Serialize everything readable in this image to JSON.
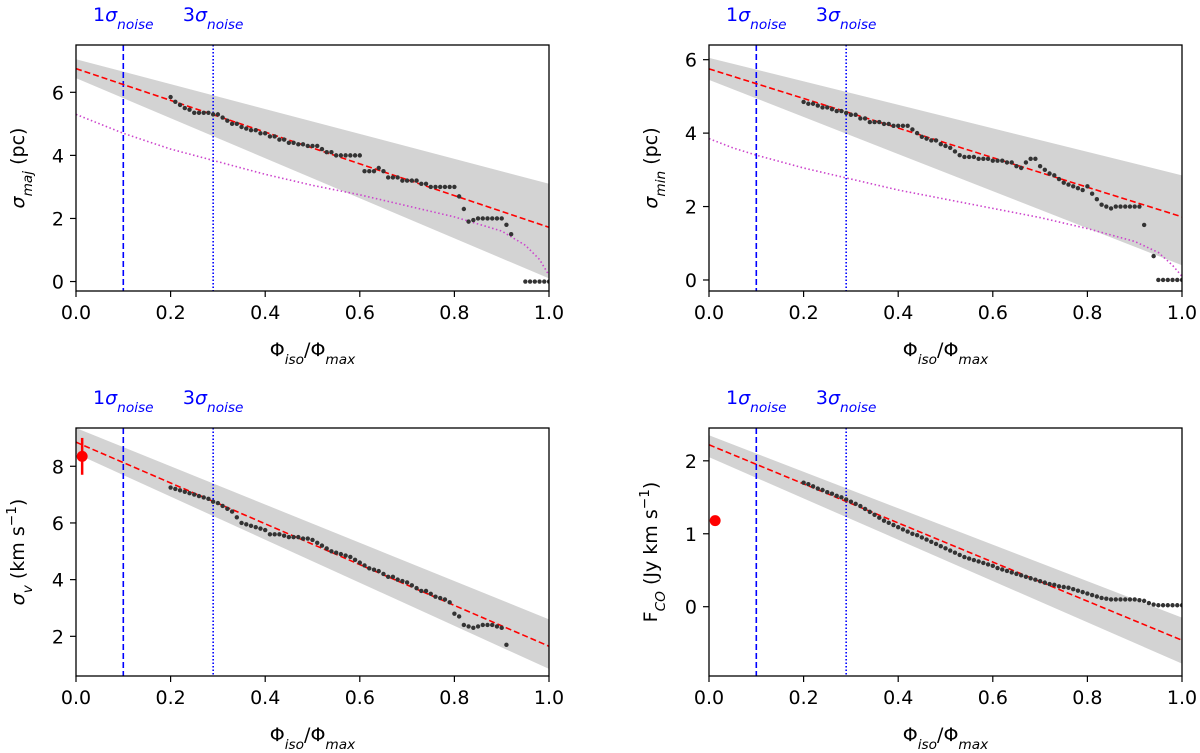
{
  "chart_data": [
    {
      "id": "maj",
      "type": "scatter",
      "xlabel": "Φiso/Φmax",
      "ylabel": "σmaj (pc)",
      "xlim": [
        0.0,
        1.0
      ],
      "ylim": [
        -0.3,
        7.5
      ],
      "xticks": [
        0.0,
        0.2,
        0.4,
        0.6,
        0.8,
        1.0
      ],
      "yticks": [
        0,
        2,
        4,
        6
      ],
      "xtick_labels": [
        "0.0",
        "0.2",
        "0.4",
        "0.6",
        "0.8",
        "1.0"
      ],
      "ytick_labels": [
        "0",
        "2",
        "4",
        "6"
      ],
      "vlines": [
        {
          "x": 0.1,
          "label": "1σnoise",
          "style": "dashed",
          "color": "#0000ff"
        },
        {
          "x": 0.29,
          "label": "3σnoise",
          "style": "dotted",
          "color": "#0000ff"
        }
      ],
      "fit": {
        "x": [
          0.0,
          1.0
        ],
        "y": [
          6.75,
          1.72
        ],
        "color": "#ff0000",
        "style": "dashed"
      },
      "band": {
        "x": [
          0.0,
          1.0
        ],
        "upper": [
          7.05,
          3.1
        ],
        "lower": [
          6.45,
          0.1
        ],
        "color": "#d3d3d3"
      },
      "curve": {
        "x": [
          0.0,
          0.05,
          0.1,
          0.2,
          0.3,
          0.4,
          0.5,
          0.6,
          0.7,
          0.8,
          0.9,
          0.95,
          0.98,
          1.0
        ],
        "y": [
          5.3,
          5.0,
          4.7,
          4.2,
          3.8,
          3.4,
          3.05,
          2.75,
          2.4,
          2.05,
          1.6,
          1.15,
          0.7,
          0.2
        ],
        "color": "#cc44cc",
        "style": "dotted"
      },
      "points": {
        "x": [
          0.2,
          0.21,
          0.22,
          0.23,
          0.24,
          0.25,
          0.26,
          0.27,
          0.28,
          0.29,
          0.3,
          0.31,
          0.32,
          0.33,
          0.34,
          0.35,
          0.36,
          0.37,
          0.38,
          0.39,
          0.4,
          0.41,
          0.42,
          0.43,
          0.44,
          0.45,
          0.46,
          0.47,
          0.48,
          0.49,
          0.5,
          0.51,
          0.52,
          0.53,
          0.54,
          0.55,
          0.56,
          0.57,
          0.58,
          0.59,
          0.6,
          0.61,
          0.62,
          0.63,
          0.64,
          0.65,
          0.66,
          0.67,
          0.68,
          0.69,
          0.7,
          0.71,
          0.72,
          0.73,
          0.74,
          0.75,
          0.76,
          0.77,
          0.78,
          0.79,
          0.8,
          0.81,
          0.82,
          0.83,
          0.84,
          0.85,
          0.86,
          0.87,
          0.88,
          0.89,
          0.9,
          0.91,
          0.92,
          0.95,
          0.96,
          0.97,
          0.98,
          0.99,
          1.0
        ],
        "y": [
          5.85,
          5.7,
          5.6,
          5.5,
          5.45,
          5.35,
          5.35,
          5.35,
          5.35,
          5.3,
          5.3,
          5.2,
          5.1,
          5.0,
          5.0,
          4.9,
          4.85,
          4.8,
          4.8,
          4.7,
          4.7,
          4.6,
          4.6,
          4.5,
          4.5,
          4.4,
          4.4,
          4.35,
          4.35,
          4.3,
          4.3,
          4.3,
          4.2,
          4.1,
          4.1,
          4.0,
          4.0,
          4.0,
          4.0,
          4.0,
          4.0,
          3.5,
          3.5,
          3.5,
          3.6,
          3.5,
          3.3,
          3.3,
          3.3,
          3.2,
          3.2,
          3.2,
          3.2,
          3.1,
          3.1,
          3.0,
          3.0,
          3.0,
          3.0,
          3.0,
          3.0,
          2.7,
          2.3,
          1.9,
          1.95,
          2.0,
          2.0,
          2.0,
          2.0,
          2.0,
          2.0,
          1.8,
          1.5,
          0.0,
          0.0,
          0.0,
          0.0,
          0.0,
          0.0
        ],
        "color": "#333333"
      },
      "extra_point": null
    },
    {
      "id": "min",
      "type": "scatter",
      "xlabel": "Φiso/Φmax",
      "ylabel": "σmin (pc)",
      "xlim": [
        0.0,
        1.0
      ],
      "ylim": [
        -0.3,
        6.4
      ],
      "xticks": [
        0.0,
        0.2,
        0.4,
        0.6,
        0.8,
        1.0
      ],
      "yticks": [
        0,
        2,
        4,
        6
      ],
      "xtick_labels": [
        "0.0",
        "0.2",
        "0.4",
        "0.6",
        "0.8",
        "1.0"
      ],
      "ytick_labels": [
        "0",
        "2",
        "4",
        "6"
      ],
      "vlines": [
        {
          "x": 0.1,
          "label": "1σnoise",
          "style": "dashed",
          "color": "#0000ff"
        },
        {
          "x": 0.29,
          "label": "3σnoise",
          "style": "dotted",
          "color": "#0000ff"
        }
      ],
      "fit": {
        "x": [
          0.0,
          1.0
        ],
        "y": [
          5.75,
          1.72
        ],
        "color": "#ff0000",
        "style": "dashed"
      },
      "band": {
        "x": [
          0.0,
          1.0
        ],
        "upper": [
          6.05,
          2.85
        ],
        "lower": [
          5.45,
          0.4
        ],
        "color": "#d3d3d3"
      },
      "curve": {
        "x": [
          0.0,
          0.05,
          0.1,
          0.2,
          0.3,
          0.4,
          0.5,
          0.6,
          0.7,
          0.8,
          0.9,
          0.95,
          0.98,
          1.0
        ],
        "y": [
          3.85,
          3.6,
          3.4,
          3.05,
          2.75,
          2.45,
          2.2,
          1.95,
          1.7,
          1.4,
          1.05,
          0.75,
          0.4,
          0.1
        ],
        "color": "#cc44cc",
        "style": "dotted"
      },
      "points": {
        "x": [
          0.2,
          0.21,
          0.22,
          0.23,
          0.24,
          0.25,
          0.26,
          0.27,
          0.28,
          0.29,
          0.3,
          0.31,
          0.32,
          0.33,
          0.34,
          0.35,
          0.36,
          0.37,
          0.38,
          0.39,
          0.4,
          0.41,
          0.42,
          0.43,
          0.44,
          0.45,
          0.46,
          0.47,
          0.48,
          0.49,
          0.5,
          0.51,
          0.52,
          0.53,
          0.54,
          0.55,
          0.56,
          0.57,
          0.58,
          0.59,
          0.6,
          0.61,
          0.62,
          0.63,
          0.64,
          0.65,
          0.66,
          0.67,
          0.68,
          0.69,
          0.7,
          0.71,
          0.72,
          0.73,
          0.74,
          0.75,
          0.76,
          0.77,
          0.78,
          0.79,
          0.8,
          0.81,
          0.82,
          0.83,
          0.84,
          0.85,
          0.86,
          0.87,
          0.88,
          0.89,
          0.9,
          0.91,
          0.92,
          0.94,
          0.95,
          0.96,
          0.97,
          0.98,
          0.99,
          1.0
        ],
        "y": [
          4.85,
          4.8,
          4.8,
          4.75,
          4.7,
          4.7,
          4.65,
          4.6,
          4.6,
          4.55,
          4.5,
          4.5,
          4.4,
          4.4,
          4.3,
          4.3,
          4.3,
          4.25,
          4.25,
          4.2,
          4.2,
          4.2,
          4.2,
          4.1,
          4.0,
          3.9,
          3.85,
          3.8,
          3.8,
          3.7,
          3.65,
          3.6,
          3.5,
          3.4,
          3.35,
          3.35,
          3.35,
          3.3,
          3.3,
          3.3,
          3.25,
          3.25,
          3.25,
          3.2,
          3.2,
          3.1,
          3.05,
          3.2,
          3.3,
          3.3,
          3.1,
          3.0,
          2.9,
          2.85,
          2.75,
          2.65,
          2.6,
          2.55,
          2.5,
          2.45,
          2.55,
          2.35,
          2.2,
          2.05,
          2.0,
          1.95,
          2.0,
          2.0,
          2.0,
          2.0,
          2.0,
          2.0,
          1.5,
          0.65,
          0.0,
          0.0,
          0.0,
          0.0,
          0.0,
          0.0
        ],
        "color": "#333333"
      },
      "extra_point": null
    },
    {
      "id": "sigv",
      "type": "scatter",
      "xlabel": "Φiso/Φmax",
      "ylabel": "σv (km s−1)",
      "xlim": [
        0.0,
        1.0
      ],
      "ylim": [
        0.6,
        9.35
      ],
      "xticks": [
        0.0,
        0.2,
        0.4,
        0.6,
        0.8,
        1.0
      ],
      "yticks": [
        2,
        4,
        6,
        8
      ],
      "xtick_labels": [
        "0.0",
        "0.2",
        "0.4",
        "0.6",
        "0.8",
        "1.0"
      ],
      "ytick_labels": [
        "2",
        "4",
        "6",
        "8"
      ],
      "vlines": [
        {
          "x": 0.1,
          "label": "1σnoise",
          "style": "dashed",
          "color": "#0000ff"
        },
        {
          "x": 0.29,
          "label": "3σnoise",
          "style": "dotted",
          "color": "#0000ff"
        }
      ],
      "fit": {
        "x": [
          0.0,
          1.0
        ],
        "y": [
          8.85,
          1.65
        ],
        "color": "#ff0000",
        "style": "dashed"
      },
      "band": {
        "x": [
          0.0,
          1.0
        ],
        "upper": [
          9.35,
          2.6
        ],
        "lower": [
          8.45,
          0.85
        ],
        "color": "#d3d3d3"
      },
      "curve": null,
      "points": {
        "x": [
          0.2,
          0.21,
          0.22,
          0.23,
          0.24,
          0.25,
          0.26,
          0.27,
          0.28,
          0.29,
          0.3,
          0.31,
          0.32,
          0.33,
          0.34,
          0.35,
          0.36,
          0.37,
          0.38,
          0.39,
          0.4,
          0.41,
          0.42,
          0.43,
          0.44,
          0.45,
          0.46,
          0.47,
          0.48,
          0.49,
          0.5,
          0.51,
          0.52,
          0.53,
          0.54,
          0.55,
          0.56,
          0.57,
          0.58,
          0.59,
          0.6,
          0.61,
          0.62,
          0.63,
          0.64,
          0.65,
          0.66,
          0.67,
          0.68,
          0.69,
          0.7,
          0.71,
          0.72,
          0.73,
          0.74,
          0.75,
          0.76,
          0.77,
          0.78,
          0.79,
          0.8,
          0.81,
          0.82,
          0.83,
          0.84,
          0.85,
          0.86,
          0.87,
          0.88,
          0.89,
          0.9,
          0.91
        ],
        "y": [
          7.25,
          7.2,
          7.15,
          7.1,
          7.05,
          7.0,
          6.95,
          6.9,
          6.85,
          6.75,
          6.7,
          6.6,
          6.5,
          6.4,
          6.2,
          6.0,
          5.95,
          5.9,
          5.85,
          5.8,
          5.75,
          5.6,
          5.6,
          5.6,
          5.55,
          5.5,
          5.5,
          5.5,
          5.45,
          5.45,
          5.4,
          5.3,
          5.2,
          5.1,
          5.0,
          4.95,
          4.9,
          4.85,
          4.8,
          4.7,
          4.6,
          4.5,
          4.4,
          4.35,
          4.3,
          4.2,
          4.1,
          4.1,
          4.0,
          3.95,
          3.9,
          3.8,
          3.7,
          3.6,
          3.6,
          3.5,
          3.4,
          3.35,
          3.3,
          3.2,
          2.8,
          2.7,
          2.4,
          2.35,
          2.3,
          2.35,
          2.4,
          2.4,
          2.4,
          2.35,
          2.3,
          1.7
        ],
        "color": "#333333"
      },
      "extra_point": {
        "x": 0.013,
        "y": 8.35,
        "err": 0.65,
        "color": "#ff0000"
      }
    },
    {
      "id": "fco",
      "type": "scatter",
      "xlabel": "Φiso/Φmax",
      "ylabel": "FCO (Jy km s−1)",
      "xlim": [
        0.0,
        1.0
      ],
      "ylim": [
        -0.95,
        2.45
      ],
      "xticks": [
        0.0,
        0.2,
        0.4,
        0.6,
        0.8,
        1.0
      ],
      "yticks": [
        0,
        1,
        2
      ],
      "xtick_labels": [
        "0.0",
        "0.2",
        "0.4",
        "0.6",
        "0.8",
        "1.0"
      ],
      "ytick_labels": [
        "0",
        "1",
        "2"
      ],
      "vlines": [
        {
          "x": 0.1,
          "label": "1σnoise",
          "style": "dashed",
          "color": "#0000ff"
        },
        {
          "x": 0.29,
          "label": "3σnoise",
          "style": "dotted",
          "color": "#0000ff"
        }
      ],
      "fit": {
        "x": [
          0.0,
          1.0
        ],
        "y": [
          2.22,
          -0.46
        ],
        "color": "#ff0000",
        "style": "dashed"
      },
      "band": {
        "x": [
          0.0,
          1.0
        ],
        "upper": [
          2.35,
          -0.15
        ],
        "lower": [
          2.05,
          -0.78
        ],
        "color": "#d3d3d3"
      },
      "curve": null,
      "points": {
        "x": [
          0.2,
          0.21,
          0.22,
          0.23,
          0.24,
          0.25,
          0.26,
          0.27,
          0.28,
          0.29,
          0.3,
          0.31,
          0.32,
          0.33,
          0.34,
          0.35,
          0.36,
          0.37,
          0.38,
          0.39,
          0.4,
          0.41,
          0.42,
          0.43,
          0.44,
          0.45,
          0.46,
          0.47,
          0.48,
          0.49,
          0.5,
          0.51,
          0.52,
          0.53,
          0.54,
          0.55,
          0.56,
          0.57,
          0.58,
          0.59,
          0.6,
          0.61,
          0.62,
          0.63,
          0.64,
          0.65,
          0.66,
          0.67,
          0.68,
          0.69,
          0.7,
          0.71,
          0.72,
          0.73,
          0.74,
          0.75,
          0.76,
          0.77,
          0.78,
          0.79,
          0.8,
          0.81,
          0.82,
          0.83,
          0.84,
          0.85,
          0.86,
          0.87,
          0.88,
          0.89,
          0.9,
          0.91,
          0.92,
          0.93,
          0.94,
          0.95,
          0.96,
          0.97,
          0.98,
          0.99,
          1.0
        ],
        "y": [
          1.7,
          1.68,
          1.65,
          1.62,
          1.6,
          1.57,
          1.55,
          1.52,
          1.5,
          1.47,
          1.44,
          1.41,
          1.38,
          1.34,
          1.3,
          1.26,
          1.22,
          1.18,
          1.15,
          1.12,
          1.09,
          1.06,
          1.03,
          1.0,
          0.98,
          0.95,
          0.92,
          0.89,
          0.86,
          0.83,
          0.8,
          0.77,
          0.74,
          0.71,
          0.68,
          0.66,
          0.64,
          0.62,
          0.6,
          0.58,
          0.56,
          0.53,
          0.51,
          0.49,
          0.47,
          0.45,
          0.43,
          0.41,
          0.39,
          0.37,
          0.35,
          0.33,
          0.31,
          0.3,
          0.28,
          0.27,
          0.26,
          0.24,
          0.22,
          0.2,
          0.18,
          0.16,
          0.14,
          0.12,
          0.11,
          0.1,
          0.1,
          0.1,
          0.1,
          0.1,
          0.1,
          0.09,
          0.08,
          0.05,
          0.03,
          0.02,
          0.02,
          0.02,
          0.02,
          0.02,
          0.02
        ],
        "color": "#333333"
      },
      "extra_point": {
        "x": 0.013,
        "y": 1.18,
        "err": 0.0,
        "color": "#ff0000"
      }
    }
  ],
  "annotations": {
    "noise_1": "1σnoise",
    "noise_3": "3σnoise"
  }
}
